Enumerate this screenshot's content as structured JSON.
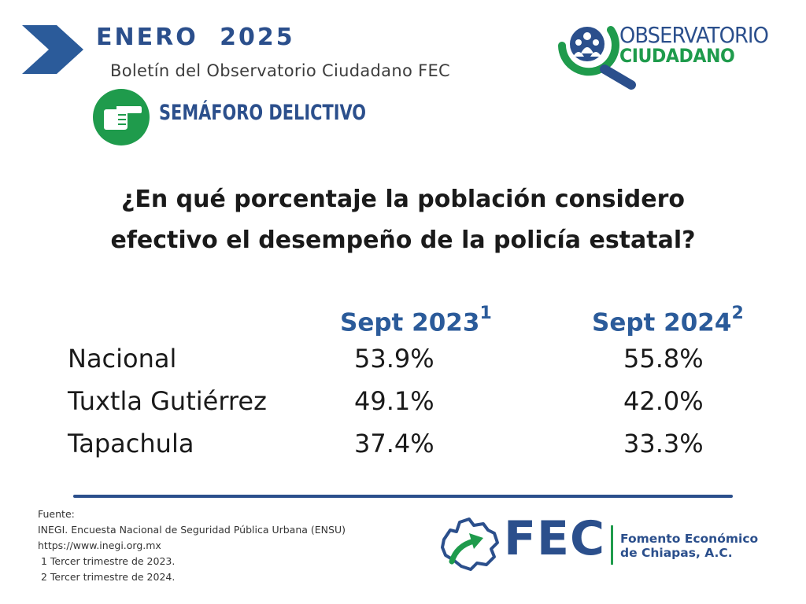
{
  "header": {
    "month": "ENERO 2025",
    "bulletin": "Boletín del Observatorio Ciudadano FEC",
    "section_title": "SEMÁFORO DELICTIVO"
  },
  "logo": {
    "line1": "OBSERVATORIO",
    "line2": "CIUDADANO"
  },
  "question": {
    "line1": "¿En qué porcentaje la población considero",
    "line2": "efectivo el desempeño de la policía estatal?"
  },
  "table": {
    "headers": [
      {
        "label": "Sept 2023",
        "sup": "1"
      },
      {
        "label": "Sept 2024",
        "sup": "2"
      }
    ],
    "rows": [
      {
        "label": "Nacional",
        "v2023": "53.9%",
        "v2024": "55.8%"
      },
      {
        "label": "Tuxtla Gutiérrez",
        "v2023": "49.1%",
        "v2024": "42.0%"
      },
      {
        "label": "Tapachula",
        "v2023": "37.4%",
        "v2024": "33.3%"
      }
    ]
  },
  "footer": {
    "source_lines": [
      "Fuente:",
      "INEGI. Encuesta Nacional de Seguridad Pública Urbana (ENSU)",
      "https://www.inegi.org.mx",
      " 1 Tercer trimestre de 2023.",
      " 2 Tercer trimestre de 2024."
    ],
    "fec_short": "FEC",
    "fec_name_line1": "Fomento Económico",
    "fec_name_line2": "de Chiapas, A.C."
  },
  "colors": {
    "primary_blue": "#2b4f8c",
    "header_blue": "#2b5b9a",
    "accent_green": "#1f9b4c"
  },
  "icons": {
    "chevron": "chevron-right-icon",
    "semaforo": "pointing-hand-icon",
    "observatorio": "magnifier-people-icon",
    "fec": "chiapas-map-arrow-icon"
  }
}
